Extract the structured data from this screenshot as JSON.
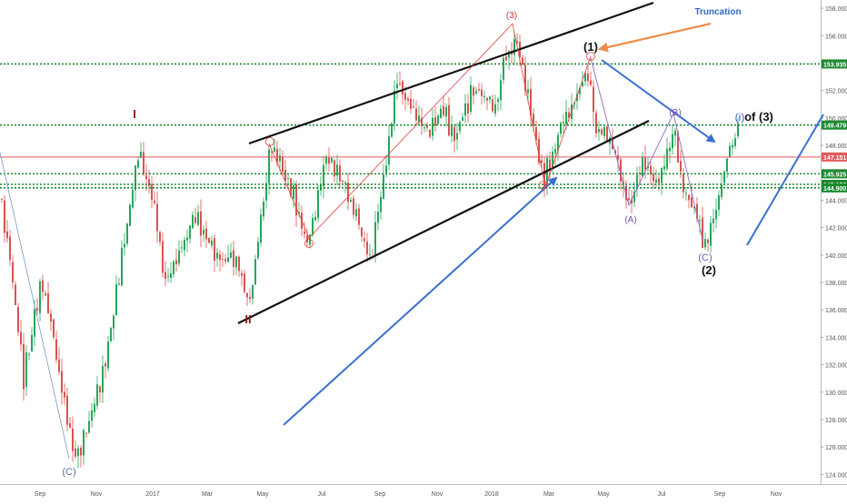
{
  "chart_data": {
    "type": "candlestick",
    "title": "",
    "xlabel": "",
    "ylabel": "",
    "ylim": [
      123.3,
      158.6
    ],
    "y_ticks": [
      124,
      126,
      128,
      130,
      132,
      134,
      136,
      138,
      140,
      142,
      144,
      146,
      148,
      150,
      152,
      154,
      156,
      158
    ],
    "y_tick_labels": [
      "124.000",
      "126.000",
      "128.000",
      "130.000",
      "132.000",
      "134.000",
      "136.000",
      "138.000",
      "140.000",
      "142.000",
      "144.000",
      "146.000",
      "148.000",
      "150.000",
      "152.000",
      "154.000",
      "156.000",
      "158.000"
    ],
    "x_tick_labels": [
      "Sep",
      "Nov",
      "2017",
      "Mar",
      "May",
      "Jul",
      "Sep",
      "Nov",
      "2018",
      "Mar",
      "May",
      "Jul",
      "Sep",
      "Nov"
    ],
    "grid": false,
    "price_path": [
      {
        "x": "2016-08",
        "y": 144.5
      },
      {
        "x": "2016-08",
        "y": 139.0
      },
      {
        "x": "2016-09",
        "y": 131.0
      },
      {
        "x": "2016-09",
        "y": 138.5
      },
      {
        "x": "2016-10",
        "y": 132.5
      },
      {
        "x": "2016-10",
        "y": 125.2
      },
      {
        "x": "2016-11",
        "y": 127.5
      },
      {
        "x": "2016-11",
        "y": 133.0
      },
      {
        "x": "2016-12",
        "y": 141.5
      },
      {
        "x": "2016-12",
        "y": 147.5
      },
      {
        "x": "2017-01",
        "y": 143.5
      },
      {
        "x": "2017-01",
        "y": 138.0
      },
      {
        "x": "2017-02",
        "y": 142.8
      },
      {
        "x": "2017-03",
        "y": 140.0
      },
      {
        "x": "2017-04",
        "y": 139.5
      },
      {
        "x": "2017-04",
        "y": 136.2
      },
      {
        "x": "2017-05",
        "y": 143.0
      },
      {
        "x": "2017-05",
        "y": 148.2
      },
      {
        "x": "2017-06",
        "y": 145.0
      },
      {
        "x": "2017-06",
        "y": 140.5
      },
      {
        "x": "2017-07",
        "y": 147.0
      },
      {
        "x": "2017-08",
        "y": 145.5
      },
      {
        "x": "2017-08",
        "y": 139.8
      },
      {
        "x": "2017-09",
        "y": 146.5
      },
      {
        "x": "2017-09",
        "y": 152.5
      },
      {
        "x": "2017-10",
        "y": 149.0
      },
      {
        "x": "2017-11",
        "y": 150.5
      },
      {
        "x": "2017-11",
        "y": 148.5
      },
      {
        "x": "2017-12",
        "y": 152.0
      },
      {
        "x": "2018-01",
        "y": 151.0
      },
      {
        "x": "2018-01",
        "y": 154.5
      },
      {
        "x": "2018-02",
        "y": 155.6
      },
      {
        "x": "2018-02",
        "y": 149.0
      },
      {
        "x": "2018-03",
        "y": 145.4
      },
      {
        "x": "2018-03",
        "y": 150.0
      },
      {
        "x": "2018-04",
        "y": 153.5
      },
      {
        "x": "2018-04",
        "y": 149.0
      },
      {
        "x": "2018-05",
        "y": 148.5
      },
      {
        "x": "2018-05",
        "y": 143.5
      },
      {
        "x": "2018-06",
        "y": 147.0
      },
      {
        "x": "2018-06",
        "y": 145.0
      },
      {
        "x": "2018-07",
        "y": 149.0
      },
      {
        "x": "2018-07",
        "y": 145.0
      },
      {
        "x": "2018-08",
        "y": 142.5
      },
      {
        "x": "2018-08",
        "y": 140.3
      },
      {
        "x": "2018-09",
        "y": 144.0
      },
      {
        "x": "2018-09",
        "y": 147.0
      },
      {
        "x": "2018-09",
        "y": 149.5
      },
      {
        "x": "2018-09",
        "y": 147.1
      }
    ],
    "horizontal_levels": [
      {
        "value": 153.935,
        "label": "153.935",
        "color": "#1b8a2f",
        "style": "dotted"
      },
      {
        "value": 149.479,
        "label": "149.479",
        "color": "#1b8a2f",
        "style": "dotted"
      },
      {
        "value": 145.925,
        "label": "145.925",
        "color": "#1b8a2f",
        "style": "dotted"
      },
      {
        "value": 145.156,
        "label": "145.156",
        "color": "#1b8a2f",
        "style": "dotted"
      },
      {
        "value": 144.9,
        "label": "144.900",
        "color": "#1b8a2f",
        "style": "dotted"
      },
      {
        "value": 147.151,
        "label": "147.151",
        "color": "#e35a5a",
        "style": "solid"
      }
    ],
    "annotations": [
      {
        "text": "(C)",
        "color": "#5d6bb0"
      },
      {
        "text": "I",
        "color": "#8a1b1b"
      },
      {
        "text": "II",
        "color": "#8a1b1b"
      },
      {
        "text": "(3)",
        "color": "#d23b3b"
      },
      {
        "text": "(1)",
        "color": "#111111"
      },
      {
        "text": "(A)",
        "color": "#7b4fb0"
      },
      {
        "text": "(B)",
        "color": "#7b4fb0"
      },
      {
        "text": "(C)",
        "color": "#5d6bb0"
      },
      {
        "text": "(2)",
        "color": "#111111"
      },
      {
        "text": "(i)",
        "color": "#3566c8"
      },
      {
        "text": "of (3)",
        "color": "#111111"
      },
      {
        "text": "Truncation",
        "color": "#3566c8"
      }
    ],
    "colors": {
      "up": "#26a65b",
      "down": "#d9534f",
      "channel": "#111111",
      "arrow_blue": "#3a6fd0",
      "arrow_orange": "#f08c4a",
      "wave_red": "#e04040",
      "wave_purple": "#8e6bbf",
      "level_green": "#1b8a2f",
      "level_red": "#e35a5a"
    }
  }
}
